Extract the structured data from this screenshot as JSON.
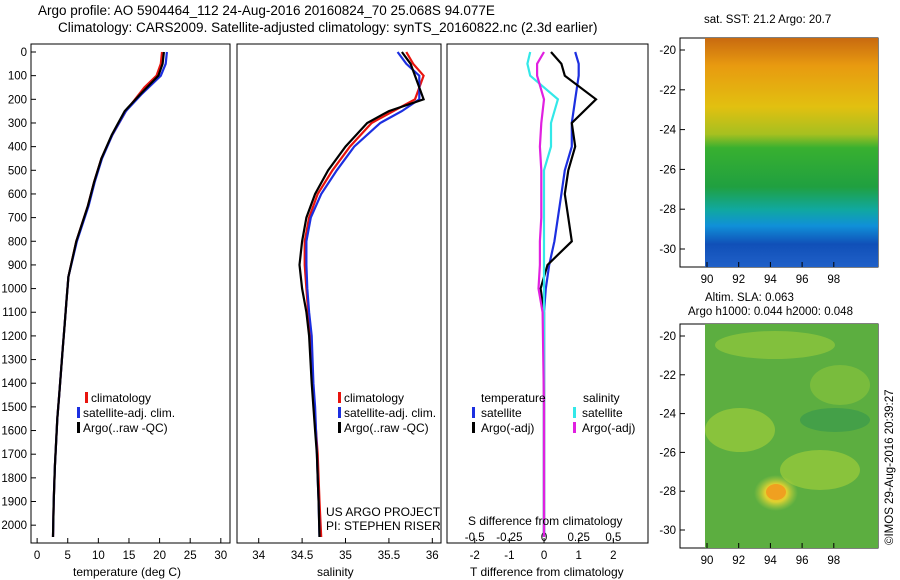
{
  "header": {
    "title_line1": "Argo profile: AO 5904464_112 24-Aug-2016 20160824_70 25.068S 94.077E",
    "title_line2": "Climatology: CARS2009. Satellite-adjusted climatology: synTS_20160822.nc (2.3d earlier)"
  },
  "colors": {
    "climatology": "#e8140e",
    "satellite": "#1c2fe0",
    "argo": "#000000",
    "sat_salinity": "#33e8e8",
    "argo_salinity": "#e020e0"
  },
  "depth_ticks": [
    "0",
    "100",
    "200",
    "300",
    "400",
    "500",
    "600",
    "700",
    "800",
    "900",
    "1000",
    "1100",
    "1200",
    "1300",
    "1400",
    "1500",
    "1600",
    "1700",
    "1800",
    "1900",
    "2000"
  ],
  "panels": {
    "temperature": {
      "xlabel": "temperature (deg C)",
      "xticks": [
        "0",
        "5",
        "10",
        "15",
        "20",
        "25",
        "30"
      ],
      "legend": [
        "climatology",
        "satellite-adj. clim.",
        "Argo(..raw -QC)"
      ]
    },
    "salinity": {
      "xlabel": "salinity",
      "xticks": [
        "34",
        "34.5",
        "35",
        "35.5",
        "36"
      ],
      "legend": [
        "climatology",
        "satellite-adj. clim.",
        "Argo(..raw -QC)"
      ],
      "project_line1": "US ARGO PROJECT",
      "project_line2": "PI: STEPHEN RISER"
    },
    "difference": {
      "xlabel": "T difference from climatology",
      "top_label": "S difference from climatology",
      "xticks_t": [
        "-2",
        "-1",
        "0",
        "1",
        "2"
      ],
      "xticks_s": [
        "-0.5",
        "-0.25",
        "0",
        "0.25",
        "0.5"
      ],
      "legend_temperature": {
        "heading": "temperature",
        "items": [
          "satellite",
          "Argo(-adj)"
        ]
      },
      "legend_salinity": {
        "heading": "salinity",
        "items": [
          "satellite",
          "Argo(-adj)"
        ]
      }
    }
  },
  "maps": {
    "sst": {
      "title": "sat. SST: 21.2 Argo: 20.7",
      "lat_ticks": [
        "-20",
        "-22",
        "-24",
        "-26",
        "-28",
        "-30"
      ],
      "lon_ticks": [
        "90",
        "92",
        "94",
        "96",
        "98"
      ]
    },
    "sla": {
      "title_line1": "Altim. SLA: 0.063",
      "title_line2": "Argo h1000: 0.044 h2000: 0.048",
      "lat_ticks": [
        "-20",
        "-22",
        "-24",
        "-26",
        "-28",
        "-30"
      ],
      "lon_ticks": [
        "90",
        "92",
        "94",
        "96",
        "98"
      ]
    }
  },
  "footer": {
    "stamp": "©IMOS 29-Aug-2016 20:39:27"
  },
  "chart_data": [
    {
      "type": "line",
      "xlabel": "temperature (deg C)",
      "ylabel": "",
      "xlim": [
        -1,
        31.5
      ],
      "ylim": [
        2070,
        0
      ],
      "series": [
        {
          "name": "climatology",
          "x": [
            20.4,
            20.2,
            19.5,
            17.5,
            14.5,
            12.3,
            10.5,
            9.3,
            8.3,
            6.4,
            5.1,
            4.8,
            4.5,
            4.2,
            3.9,
            3.6,
            3.3,
            3.1,
            2.9,
            2.7,
            2.6
          ],
          "y": [
            0,
            50,
            100,
            150,
            250,
            350,
            450,
            550,
            650,
            800,
            950,
            1050,
            1150,
            1250,
            1350,
            1450,
            1550,
            1650,
            1750,
            1900,
            2050
          ]
        },
        {
          "name": "satellite-adj. clim.",
          "x": [
            21.2,
            21.0,
            20.2,
            17.0,
            14.5,
            12.3,
            10.6,
            9.4,
            8.4,
            6.5,
            5.1,
            4.8,
            4.5,
            4.2,
            3.9,
            3.6,
            3.3,
            3.1,
            2.9,
            2.7,
            2.6
          ],
          "y": [
            0,
            50,
            100,
            180,
            250,
            350,
            450,
            550,
            650,
            800,
            950,
            1050,
            1150,
            1250,
            1350,
            1450,
            1550,
            1650,
            1750,
            1900,
            2050
          ]
        },
        {
          "name": "Argo(..raw -QC)",
          "x": [
            20.7,
            20.5,
            19.8,
            16.8,
            14.3,
            12.2,
            10.5,
            9.3,
            8.3,
            6.4,
            5.1,
            4.8,
            4.5,
            4.2,
            3.9,
            3.6,
            3.3,
            3.1,
            2.9,
            2.7,
            2.6
          ],
          "y": [
            0,
            50,
            100,
            180,
            250,
            350,
            450,
            550,
            650,
            800,
            950,
            1050,
            1150,
            1250,
            1350,
            1450,
            1550,
            1650,
            1750,
            1900,
            2050
          ]
        }
      ]
    },
    {
      "type": "line",
      "xlabel": "salinity",
      "ylabel": "",
      "xlim": [
        33.75,
        36.1
      ],
      "ylim": [
        2070,
        0
      ],
      "series": [
        {
          "name": "climatology",
          "x": [
            35.7,
            35.78,
            35.9,
            35.8,
            35.55,
            35.3,
            35.05,
            34.85,
            34.68,
            34.58,
            34.53,
            34.53,
            34.55,
            34.57,
            34.6,
            34.62,
            34.64,
            34.66,
            34.68,
            34.69,
            34.7,
            34.72
          ],
          "y": [
            0,
            50,
            100,
            200,
            250,
            300,
            400,
            500,
            600,
            700,
            800,
            900,
            1000,
            1100,
            1200,
            1400,
            1500,
            1600,
            1700,
            1800,
            1900,
            2050
          ]
        },
        {
          "name": "satellite-adj. clim.",
          "x": [
            35.6,
            35.7,
            35.85,
            35.85,
            35.65,
            35.4,
            35.1,
            34.9,
            34.72,
            34.6,
            34.55,
            34.55,
            34.56,
            34.58,
            34.61,
            34.63,
            34.65,
            34.66,
            34.67,
            34.68,
            34.69,
            34.7
          ],
          "y": [
            0,
            50,
            100,
            200,
            250,
            300,
            400,
            500,
            600,
            700,
            800,
            900,
            1000,
            1100,
            1200,
            1400,
            1500,
            1600,
            1700,
            1800,
            1900,
            2050
          ]
        },
        {
          "name": "Argo(..raw -QC)",
          "x": [
            35.65,
            35.75,
            35.8,
            35.9,
            35.5,
            35.25,
            35.0,
            34.8,
            34.65,
            34.55,
            34.5,
            34.47,
            34.5,
            34.55,
            34.58,
            34.61,
            34.63,
            34.65,
            34.67,
            34.68,
            34.69,
            34.7
          ],
          "y": [
            0,
            50,
            100,
            200,
            250,
            300,
            400,
            500,
            600,
            700,
            800,
            900,
            1000,
            1100,
            1200,
            1400,
            1500,
            1600,
            1700,
            1800,
            1900,
            2050
          ]
        }
      ]
    },
    {
      "type": "line",
      "xlabel": "T difference from climatology",
      "ylabel": "",
      "xlim": [
        -2.8,
        3.0
      ],
      "ylim": [
        2070,
        0
      ],
      "series": [
        {
          "name": "temperature satellite",
          "x": [
            0.9,
            1.0,
            1.0,
            0.9,
            0.8,
            0.8,
            0.6,
            0.5,
            0.4,
            0.3,
            0.15,
            0.05,
            0,
            0,
            0
          ],
          "y": [
            0,
            50,
            100,
            200,
            300,
            400,
            500,
            600,
            700,
            800,
            900,
            1000,
            1100,
            1500,
            2050
          ]
        },
        {
          "name": "temperature Argo(-adj)",
          "x": [
            0.2,
            0.5,
            0.6,
            1.5,
            0.8,
            0.9,
            0.7,
            0.6,
            0.7,
            0.8,
            0.1,
            -0.1,
            0,
            0,
            0
          ],
          "y": [
            0,
            50,
            100,
            200,
            300,
            400,
            500,
            600,
            700,
            800,
            900,
            1000,
            1100,
            1500,
            2050
          ]
        }
      ]
    },
    {
      "type": "line",
      "xlabel": "S difference from climatology",
      "ylabel": "",
      "xlim": [
        -0.7,
        0.75
      ],
      "ylim": [
        2070,
        0
      ],
      "series": [
        {
          "name": "salinity satellite",
          "x": [
            -0.1,
            -0.12,
            -0.1,
            0.1,
            0.05,
            0.05,
            0,
            0,
            0,
            0,
            0,
            0,
            0,
            0,
            0
          ],
          "y": [
            0,
            50,
            100,
            200,
            300,
            400,
            500,
            600,
            700,
            800,
            900,
            1000,
            1100,
            1500,
            2050
          ]
        },
        {
          "name": "salinity Argo(-adj)",
          "x": [
            0,
            -0.05,
            -0.05,
            0,
            -0.02,
            -0.03,
            -0.02,
            -0.02,
            -0.02,
            -0.03,
            -0.03,
            -0.04,
            -0.01,
            0,
            0
          ],
          "y": [
            0,
            50,
            100,
            200,
            300,
            400,
            500,
            600,
            700,
            800,
            900,
            1000,
            1100,
            1500,
            2050
          ]
        }
      ]
    }
  ]
}
